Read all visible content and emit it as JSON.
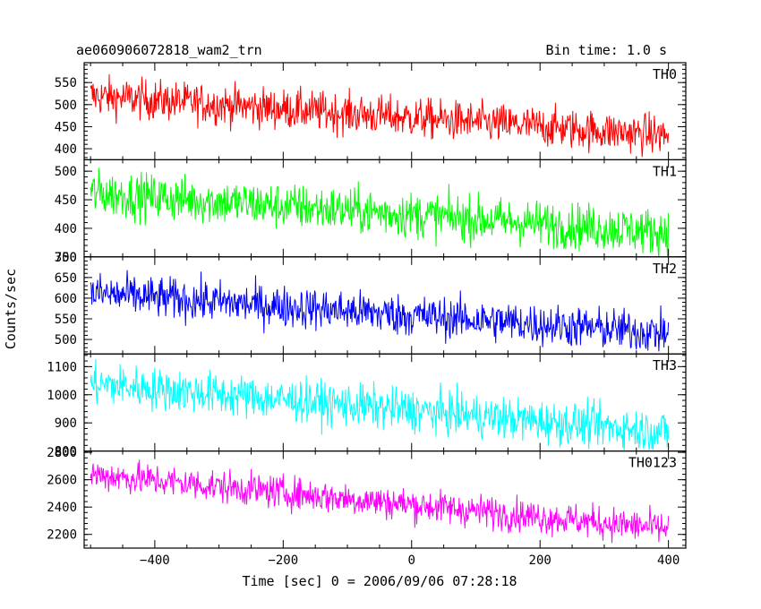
{
  "header": {
    "title": "ae060906072818_wam2_trn",
    "bin_time": "Bin time: 1.0 s"
  },
  "chart_data": {
    "type": "line",
    "xlabel": "Time [sec] 0 = 2006/09/06 07:28:18",
    "ylabel": "Counts/sec",
    "xlim": [
      -510,
      427
    ],
    "x_ticks": [
      -400,
      -200,
      0,
      200,
      400
    ],
    "x_tick_labels": [
      "−400",
      "−200",
      "0",
      "200",
      "400"
    ],
    "x_range": [
      -500,
      400
    ],
    "bin_time_s": 1.0,
    "grid": false,
    "panels": [
      {
        "name": "TH0",
        "color": "#ff0000",
        "ylim": [
          375,
          595
        ],
        "yticks": [
          400,
          450,
          500,
          550
        ],
        "trend_start": 520,
        "trend_end": 430,
        "noise_halfwidth": 45
      },
      {
        "name": "TH1",
        "color": "#00ff00",
        "ylim": [
          350,
          520
        ],
        "yticks": [
          350,
          400,
          450,
          500
        ],
        "trend_start": 462,
        "trend_end": 393,
        "noise_halfwidth": 40
      },
      {
        "name": "TH2",
        "color": "#0000ff",
        "ylim": [
          465,
          700
        ],
        "yticks": [
          500,
          550,
          600,
          650,
          700
        ],
        "trend_start": 612,
        "trend_end": 515,
        "noise_halfwidth": 50
      },
      {
        "name": "TH3",
        "color": "#00ffff",
        "ylim": [
          800,
          1145
        ],
        "yticks": [
          800,
          900,
          1000,
          1100
        ],
        "trend_start": 1040,
        "trend_end": 868,
        "noise_halfwidth": 75
      },
      {
        "name": "TH0123",
        "color": "#ff00ff",
        "ylim": [
          2100,
          2810
        ],
        "yticks": [
          2200,
          2400,
          2600,
          2800
        ],
        "trend_start": 2640,
        "trend_end": 2240,
        "noise_halfwidth": 120
      }
    ]
  }
}
